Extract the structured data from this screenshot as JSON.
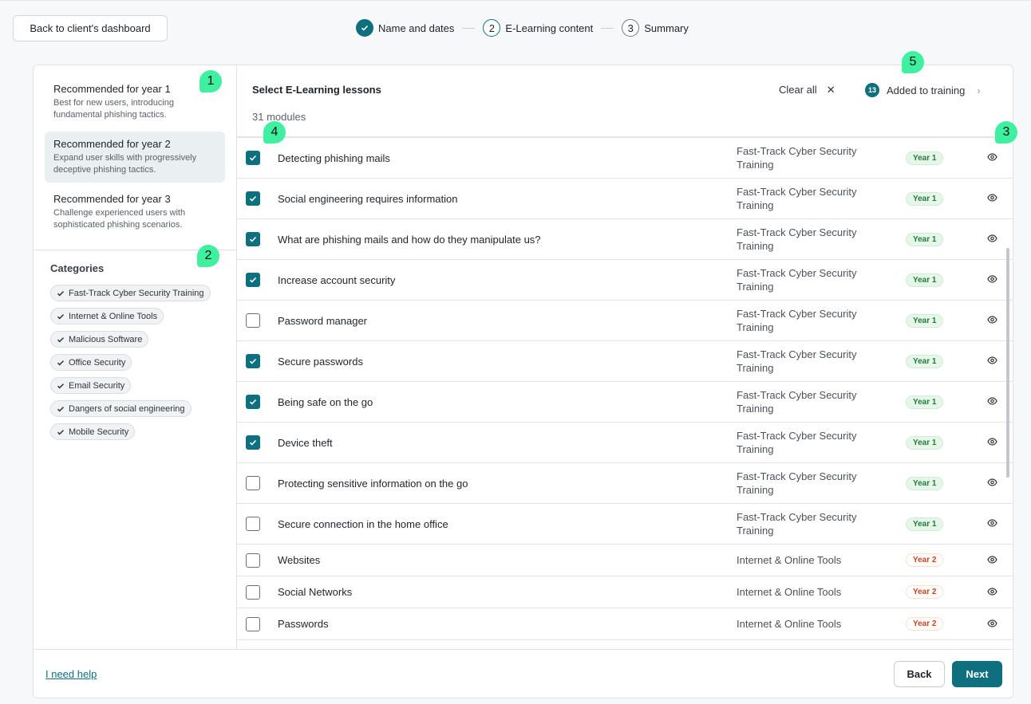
{
  "top": {
    "back_label": "Back to client's dashboard"
  },
  "stepper": [
    {
      "num": "✓",
      "label": "Name and dates",
      "state": "done"
    },
    {
      "num": "2",
      "label": "E-Learning content",
      "state": "current"
    },
    {
      "num": "3",
      "label": "Summary",
      "state": "todo"
    }
  ],
  "sidebar": {
    "recommendations": [
      {
        "title": "Recommended for year 1",
        "desc": "Best for new users, introducing fundamental phishing tactics.",
        "selected": false
      },
      {
        "title": "Recommended for year 2",
        "desc": "Expand user skills with progressively deceptive phishing tactics.",
        "selected": true
      },
      {
        "title": "Recommended for year 3",
        "desc": "Challenge experienced users with sophisticated phishing scenarios.",
        "selected": false
      }
    ],
    "categories_title": "Categories",
    "categories": [
      "Fast-Track Cyber Security Training",
      "Internet & Online Tools",
      "Malicious Software",
      "Office Security",
      "Email Security",
      "Dangers of social engineering",
      "Mobile Security"
    ]
  },
  "main": {
    "title": "Select E-Learning lessons",
    "count": "31 modules",
    "clear_all": "Clear all",
    "added_count": "13",
    "added_label": "Added to training",
    "lessons": [
      {
        "name": "Detecting phishing mails",
        "category": "Fast-Track Cyber Security Training",
        "year": "Year 1",
        "checked": true
      },
      {
        "name": "Social engineering requires information",
        "category": "Fast-Track Cyber Security Training",
        "year": "Year 1",
        "checked": true
      },
      {
        "name": "What are phishing mails and how do they manipulate us?",
        "category": "Fast-Track Cyber Security Training",
        "year": "Year 1",
        "checked": true
      },
      {
        "name": "Increase account security",
        "category": "Fast-Track Cyber Security Training",
        "year": "Year 1",
        "checked": true
      },
      {
        "name": "Password manager",
        "category": "Fast-Track Cyber Security Training",
        "year": "Year 1",
        "checked": false
      },
      {
        "name": "Secure passwords",
        "category": "Fast-Track Cyber Security Training",
        "year": "Year 1",
        "checked": true
      },
      {
        "name": "Being safe on the go",
        "category": "Fast-Track Cyber Security Training",
        "year": "Year 1",
        "checked": true
      },
      {
        "name": "Device theft",
        "category": "Fast-Track Cyber Security Training",
        "year": "Year 1",
        "checked": true
      },
      {
        "name": "Protecting sensitive information on the go",
        "category": "Fast-Track Cyber Security Training",
        "year": "Year 1",
        "checked": false
      },
      {
        "name": "Secure connection in the home office",
        "category": "Fast-Track Cyber Security Training",
        "year": "Year 1",
        "checked": false
      },
      {
        "name": "Websites",
        "category": "Internet & Online Tools",
        "year": "Year 2",
        "checked": false
      },
      {
        "name": "Social Networks",
        "category": "Internet & Online Tools",
        "year": "Year 2",
        "checked": false
      },
      {
        "name": "Passwords",
        "category": "Internet & Online Tools",
        "year": "Year 2",
        "checked": false
      }
    ]
  },
  "footer": {
    "help": "I need help",
    "back": "Back",
    "next": "Next"
  },
  "annotations": [
    "1",
    "2",
    "3",
    "4",
    "5"
  ],
  "colors": {
    "accent": "#0e6f7f",
    "year1": "#227a3b",
    "year2": "#c9431a",
    "marker": "#3ef0a0"
  }
}
